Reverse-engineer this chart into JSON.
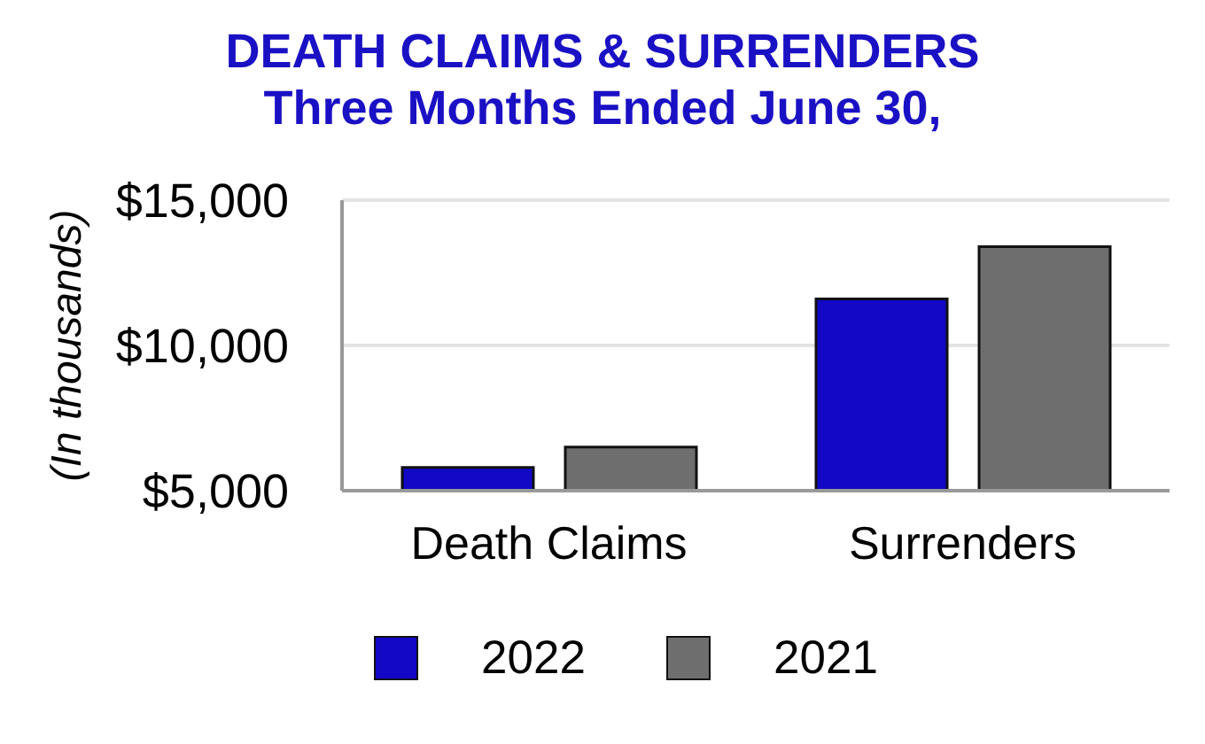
{
  "chart_data": {
    "type": "bar",
    "title": "DEATH CLAIMS & SURRENDERS",
    "subtitle": "Three Months Ended June 30,",
    "ylabel": "(In thousands)",
    "categories": [
      "Death Claims",
      "Surrenders"
    ],
    "series": [
      {
        "name": "2022",
        "color": "#1208c6",
        "values": [
          5800,
          11600
        ]
      },
      {
        "name": "2021",
        "color": "#6e6e6e",
        "values": [
          6500,
          13400
        ]
      }
    ],
    "ylim": [
      5000,
      15000
    ],
    "yticks": [
      {
        "value": 5000,
        "label": "$5,000"
      },
      {
        "value": 10000,
        "label": "$10,000"
      },
      {
        "value": 15000,
        "label": "$15,000"
      }
    ],
    "grid": "y",
    "legend": "bottom"
  }
}
